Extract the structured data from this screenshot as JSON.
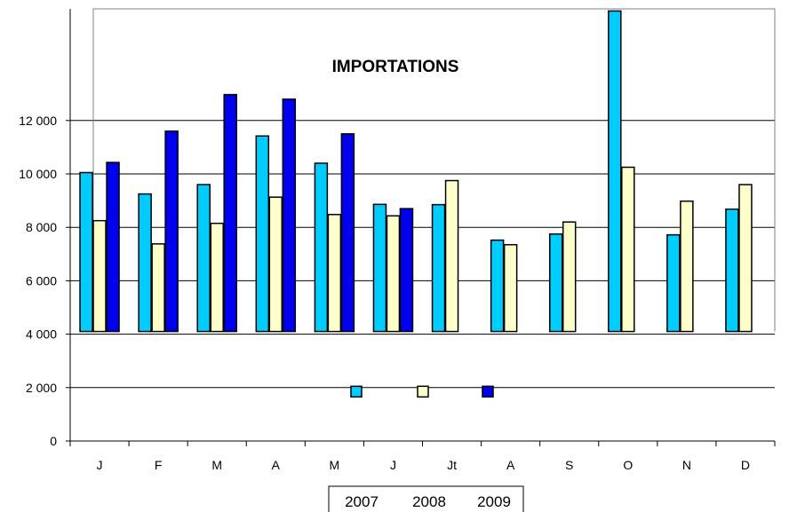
{
  "chart_data": {
    "type": "bar",
    "title": "IMPORTATIONS",
    "categories": [
      "J",
      "F",
      "M",
      "A",
      "M",
      "J",
      "Jt",
      "A",
      "S",
      "O",
      "N",
      "D"
    ],
    "series": [
      {
        "name": "2007",
        "color": "#00ccff",
        "values": [
          10050,
          9250,
          9600,
          11420,
          10400,
          8860,
          8850,
          7520,
          7750,
          16100,
          7720,
          8680
        ]
      },
      {
        "name": "2008",
        "color": "#ffffcc",
        "values": [
          8250,
          7380,
          8150,
          9130,
          8480,
          8430,
          9750,
          7350,
          8200,
          10250,
          8980,
          9600
        ]
      },
      {
        "name": "2009",
        "color": "#0000ee",
        "values": [
          10430,
          11600,
          12970,
          12800,
          11500,
          8700,
          null,
          null,
          null,
          null,
          null,
          null
        ]
      }
    ],
    "yticks": [
      "0",
      "2 000",
      "4 000",
      "6 000",
      "8 000",
      "10 000",
      "12 000"
    ],
    "ylim": [
      0,
      16000
    ],
    "grid": true,
    "legend": "bottom-center"
  }
}
